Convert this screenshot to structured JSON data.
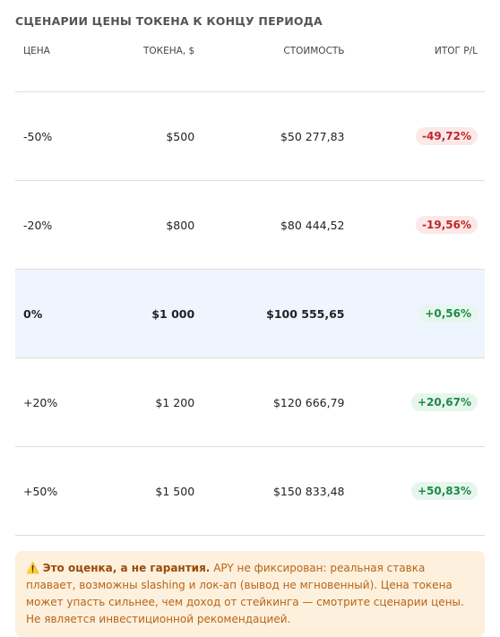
{
  "title": "СЦЕНАРИИ ЦЕНЫ ТОКЕНА К КОНЦУ ПЕРИОДА",
  "table": {
    "headers": [
      "ЦЕНА",
      "ТОКЕНА, $",
      "СТОИМОСТЬ",
      "ИТОГ P/L"
    ],
    "rows": [
      [
        "-50%",
        "$500",
        "$50 277,83",
        "-49,72%"
      ],
      [
        "-20%",
        "$800",
        "$80 444,52",
        "-19,56%"
      ],
      [
        "0%",
        "$1 000",
        "$100 555,65",
        "+0,56%"
      ],
      [
        "+20%",
        "$1 200",
        "$120 666,79",
        "+20,67%"
      ],
      [
        "+50%",
        "$1 500",
        "$150 833,48",
        "+50,83%"
      ]
    ]
  },
  "notice": {
    "bold": "Это оценка, а не гарантия.",
    "text": "APY не фиксирован: реальная ставка плавает, возможны slashing и лок-ап (вывод не мгновенный). Цена токена может упасть сильнее, чем доход от стейкинга — смотрите сценарии цены. Не является инвестиционной рекомендацией."
  }
}
